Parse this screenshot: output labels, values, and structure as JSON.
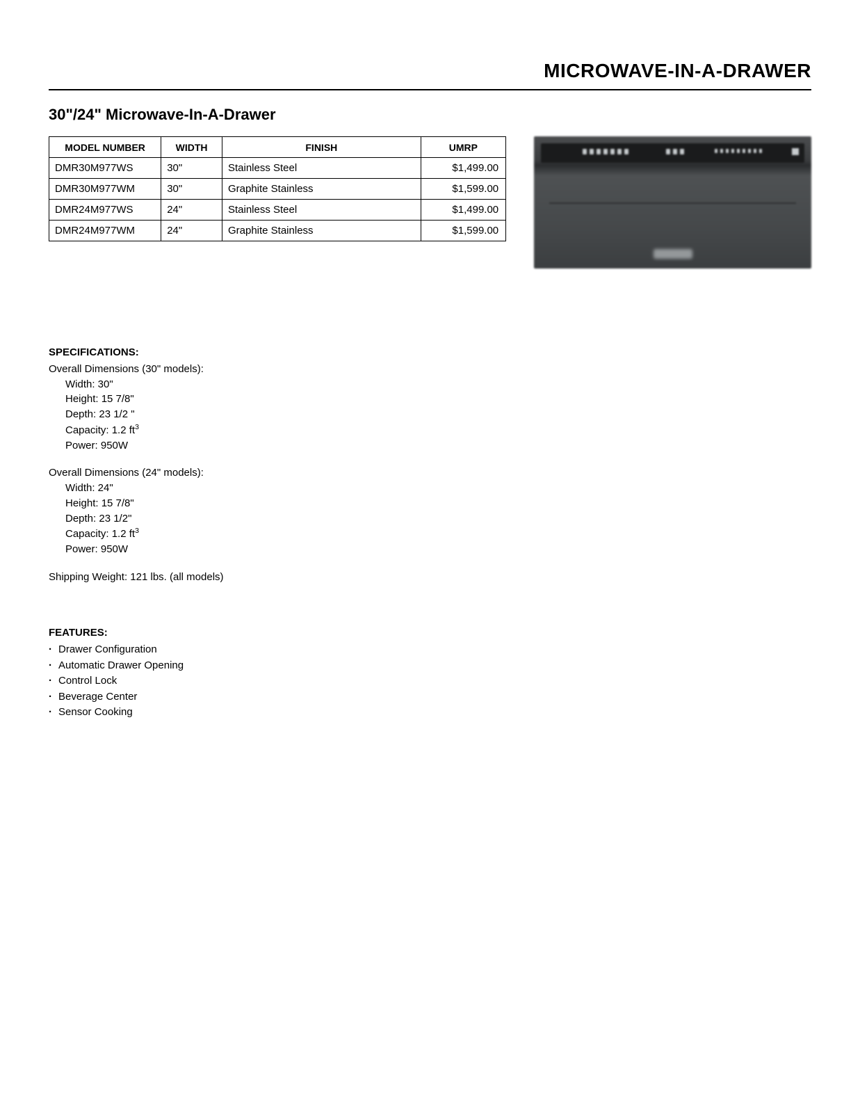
{
  "header": {
    "title": "MICROWAVE-IN-A-DRAWER"
  },
  "subtitle": "30\"/24\" Microwave-In-A-Drawer",
  "table": {
    "columns": [
      "MODEL NUMBER",
      "WIDTH",
      "FINISH",
      "UMRP"
    ],
    "rows": [
      {
        "model": "DMR30M977WS",
        "width": "30\"",
        "finish": "Stainless Steel",
        "price": "$1,499.00"
      },
      {
        "model": "DMR30M977WM",
        "width": "30\"",
        "finish": "Graphite Stainless",
        "price": "$1,599.00"
      },
      {
        "model": "DMR24M977WS",
        "width": "24\"",
        "finish": "Stainless Steel",
        "price": "$1,499.00"
      },
      {
        "model": "DMR24M977WM",
        "width": "24\"",
        "finish": "Graphite Stainless",
        "price": "$1,599.00"
      }
    ]
  },
  "specs": {
    "title": "SPECIFICATIONS:",
    "group30_label": "Overall Dimensions (30\" models):",
    "group30": {
      "width": "Width: 30\"",
      "height": "Height: 15 7/8\"",
      "depth": "Depth: 23 1/2 \"",
      "capacity_prefix": "Capacity: 1.2 ft",
      "capacity_sup": "3",
      "power": "Power: 950W"
    },
    "group24_label": "Overall Dimensions (24\" models):",
    "group24": {
      "width": "Width: 24\"",
      "height": "Height: 15 7/8\"",
      "depth": "Depth: 23 1/2\"",
      "capacity_prefix": "Capacity: 1.2 ft",
      "capacity_sup": "3",
      "power": "Power: 950W"
    },
    "shipping": "Shipping Weight:  121 lbs. (all models)"
  },
  "features": {
    "title": "FEATURES:",
    "items": [
      "Drawer Configuration",
      "Automatic Drawer Opening",
      "Control Lock",
      "Beverage Center",
      "Sensor Cooking"
    ]
  }
}
